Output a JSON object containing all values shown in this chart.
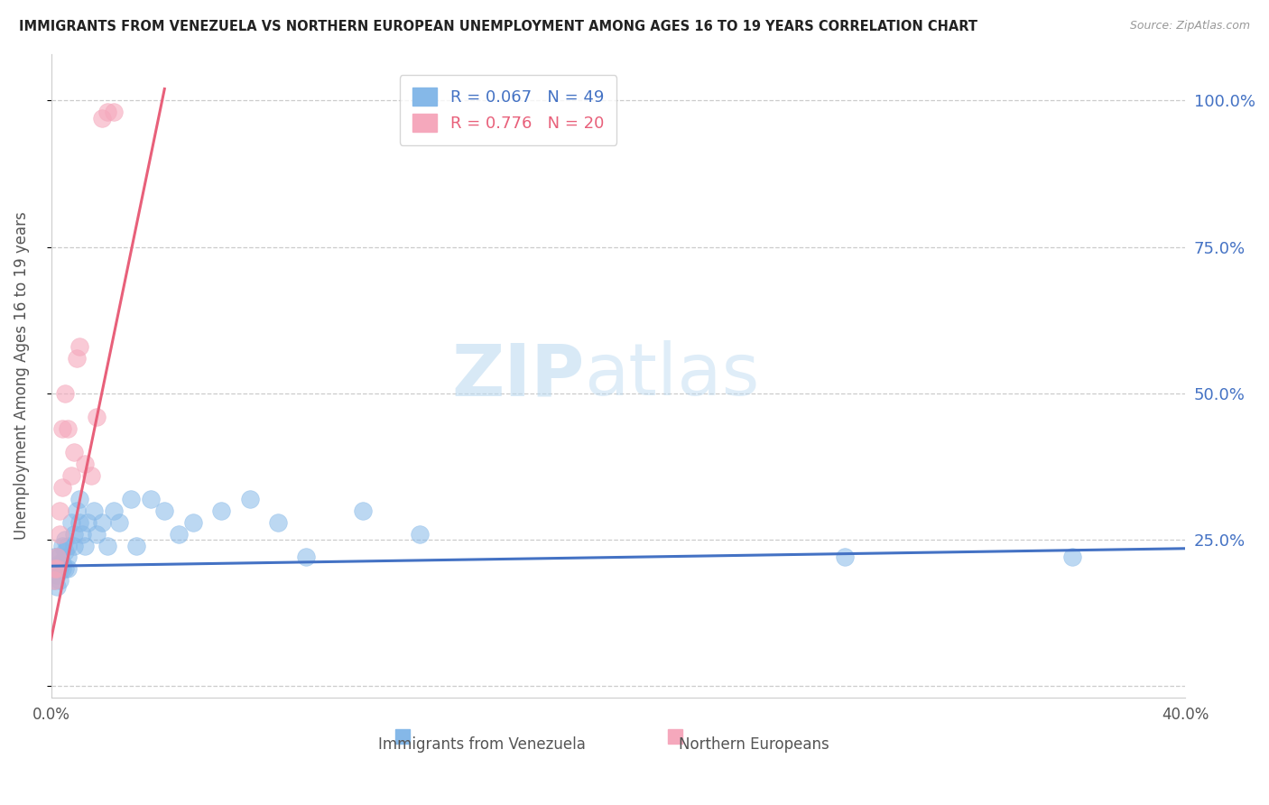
{
  "title": "IMMIGRANTS FROM VENEZUELA VS NORTHERN EUROPEAN UNEMPLOYMENT AMONG AGES 16 TO 19 YEARS CORRELATION CHART",
  "source": "Source: ZipAtlas.com",
  "ylabel": "Unemployment Among Ages 16 to 19 years",
  "xlim": [
    0,
    0.4
  ],
  "ylim": [
    -0.02,
    1.08
  ],
  "yticks": [
    0.0,
    0.25,
    0.5,
    0.75,
    1.0
  ],
  "ytick_labels": [
    "",
    "25.0%",
    "50.0%",
    "75.0%",
    "100.0%"
  ],
  "legend_blue_label": "Immigrants from Venezuela",
  "legend_pink_label": "Northern Europeans",
  "R_blue": 0.067,
  "N_blue": 49,
  "R_pink": 0.776,
  "N_pink": 20,
  "blue_color": "#85b8e8",
  "pink_color": "#f5a8bc",
  "blue_line_color": "#4472c4",
  "pink_line_color": "#e8607a",
  "watermark_zip": "ZIP",
  "watermark_atlas": "atlas",
  "blue_scatter_x": [
    0.001,
    0.001,
    0.001,
    0.002,
    0.002,
    0.002,
    0.002,
    0.003,
    0.003,
    0.003,
    0.003,
    0.004,
    0.004,
    0.004,
    0.005,
    0.005,
    0.005,
    0.006,
    0.006,
    0.006,
    0.007,
    0.008,
    0.008,
    0.009,
    0.01,
    0.01,
    0.011,
    0.012,
    0.013,
    0.015,
    0.016,
    0.018,
    0.02,
    0.022,
    0.024,
    0.028,
    0.03,
    0.035,
    0.04,
    0.045,
    0.05,
    0.06,
    0.07,
    0.08,
    0.09,
    0.11,
    0.13,
    0.28,
    0.36
  ],
  "blue_scatter_y": [
    0.2,
    0.18,
    0.22,
    0.2,
    0.22,
    0.17,
    0.19,
    0.21,
    0.2,
    0.18,
    0.22,
    0.24,
    0.2,
    0.21,
    0.23,
    0.2,
    0.25,
    0.22,
    0.24,
    0.2,
    0.28,
    0.26,
    0.24,
    0.3,
    0.32,
    0.28,
    0.26,
    0.24,
    0.28,
    0.3,
    0.26,
    0.28,
    0.24,
    0.3,
    0.28,
    0.32,
    0.24,
    0.32,
    0.3,
    0.26,
    0.28,
    0.3,
    0.32,
    0.28,
    0.22,
    0.3,
    0.26,
    0.22,
    0.22
  ],
  "pink_scatter_x": [
    0.001,
    0.001,
    0.002,
    0.002,
    0.003,
    0.003,
    0.004,
    0.004,
    0.005,
    0.006,
    0.007,
    0.008,
    0.009,
    0.01,
    0.012,
    0.014,
    0.016,
    0.018,
    0.02,
    0.022
  ],
  "pink_scatter_y": [
    0.2,
    0.18,
    0.22,
    0.2,
    0.26,
    0.3,
    0.34,
    0.44,
    0.5,
    0.44,
    0.36,
    0.4,
    0.56,
    0.58,
    0.38,
    0.36,
    0.46,
    0.97,
    0.98,
    0.98
  ],
  "blue_trend_x0": 0.0,
  "blue_trend_x1": 0.4,
  "blue_trend_y0": 0.205,
  "blue_trend_y1": 0.235,
  "pink_trend_x0": 0.0,
  "pink_trend_x1": 0.04,
  "pink_trend_y0": 0.08,
  "pink_trend_y1": 1.02
}
